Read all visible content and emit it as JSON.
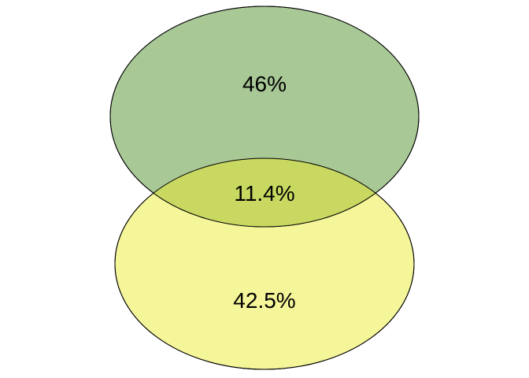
{
  "venn": {
    "sets": [
      {
        "id": "top",
        "color": "#a8c896"
      },
      {
        "id": "bottom",
        "color": "#f5f59a"
      }
    ],
    "intersection_color": "#c8d860",
    "labels": {
      "top_only": "46%",
      "intersection": "11.4%",
      "bottom_only": "42.5%"
    },
    "values_percent": {
      "top_only": 46,
      "intersection": 11.4,
      "bottom_only": 42.5
    }
  }
}
